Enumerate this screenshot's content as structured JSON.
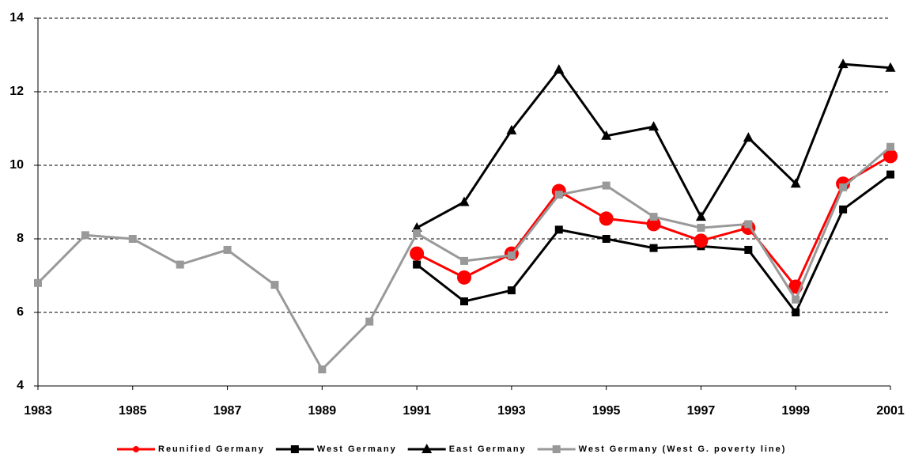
{
  "chart_data": {
    "type": "line",
    "x": [
      1983,
      1984,
      1985,
      1986,
      1987,
      1988,
      1989,
      1990,
      1991,
      1992,
      1993,
      1994,
      1995,
      1996,
      1997,
      1998,
      1999,
      2000,
      2001
    ],
    "xlim": [
      1983,
      2001
    ],
    "xticks": [
      1983,
      1985,
      1987,
      1989,
      1991,
      1993,
      1995,
      1997,
      1999,
      2001
    ],
    "ylim": [
      4,
      14
    ],
    "yticks": [
      4,
      6,
      8,
      10,
      12,
      14
    ],
    "grid": true,
    "legend": "bottom",
    "series": [
      {
        "name": "Reunified Germany",
        "color": "#ff0000",
        "marker": "circle",
        "values": [
          null,
          null,
          null,
          null,
          null,
          null,
          null,
          null,
          7.6,
          6.95,
          7.6,
          9.3,
          8.55,
          8.4,
          7.95,
          8.3,
          6.7,
          9.5,
          10.25
        ]
      },
      {
        "name": "West Germany",
        "color": "#000000",
        "marker": "square",
        "values": [
          null,
          null,
          null,
          null,
          null,
          null,
          null,
          null,
          7.3,
          6.3,
          6.6,
          8.25,
          8.0,
          7.75,
          7.8,
          7.7,
          6.0,
          8.8,
          9.75
        ]
      },
      {
        "name": "East Germany",
        "color": "#000000",
        "marker": "triangle",
        "values": [
          null,
          null,
          null,
          null,
          null,
          null,
          null,
          null,
          8.3,
          9.0,
          10.95,
          12.6,
          10.8,
          11.05,
          8.6,
          10.75,
          9.5,
          12.75,
          12.65
        ]
      },
      {
        "name": "West Germany (West G. poverty line)",
        "color": "#999999",
        "marker": "square",
        "values": [
          6.8,
          8.1,
          8.0,
          7.3,
          7.7,
          6.75,
          4.45,
          5.75,
          8.15,
          7.4,
          7.55,
          9.2,
          9.45,
          8.6,
          8.3,
          8.4,
          6.35,
          9.4,
          10.5
        ]
      }
    ]
  }
}
